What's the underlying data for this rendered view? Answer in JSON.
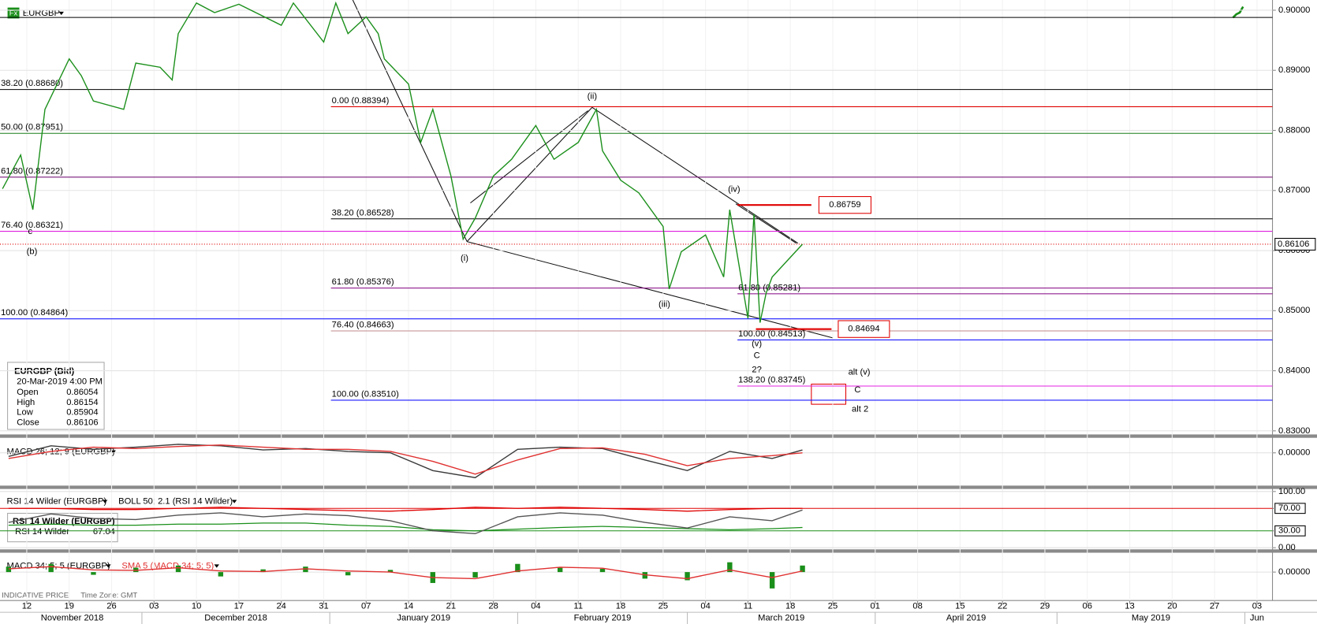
{
  "chart_data": [
    {
      "type": "line",
      "symbol_icon": "Fx",
      "symbol": "EURGBP",
      "series": [
        {
          "color": "#1a8f1a",
          "x": [
            "2018-11-08",
            "2018-11-11",
            "2018-11-13",
            "2018-11-15",
            "2018-11-19",
            "2018-11-21",
            "2018-11-23",
            "2018-11-28",
            "2018-11-30",
            "2018-12-04",
            "2018-12-06",
            "2018-12-07",
            "2018-12-10",
            "2018-12-13",
            "2018-12-17",
            "2018-12-24",
            "2018-12-26",
            "2018-12-31",
            "2019-01-02",
            "2019-01-04",
            "2019-01-07",
            "2019-01-09",
            "2019-01-10",
            "2019-01-14",
            "2019-01-16",
            "2019-01-18",
            "2019-01-21",
            "2019-01-23",
            "2019-01-25",
            "2019-01-28",
            "2019-01-31",
            "2019-02-04",
            "2019-02-07",
            "2019-02-11",
            "2019-02-14",
            "2019-02-15",
            "2019-02-18",
            "2019-02-21",
            "2019-02-25",
            "2019-02-26",
            "2019-02-28",
            "2019-03-04",
            "2019-03-07",
            "2019-03-08",
            "2019-03-11",
            "2019-03-12",
            "2019-03-13",
            "2019-03-14",
            "2019-03-15",
            "2019-03-20"
          ],
          "values": [
            0.8703,
            0.8759,
            0.8668,
            0.8835,
            0.8919,
            0.8891,
            0.8849,
            0.8835,
            0.8912,
            0.8905,
            0.8884,
            0.8961,
            0.9012,
            0.8996,
            0.901,
            0.8975,
            0.9012,
            0.8947,
            0.9012,
            0.8961,
            0.8989,
            0.8961,
            0.8919,
            0.8877,
            0.878,
            0.8835,
            0.8724,
            0.8619,
            0.8654,
            0.8724,
            0.8752,
            0.8808,
            0.8752,
            0.878,
            0.8835,
            0.8766,
            0.8717,
            0.8696,
            0.864,
            0.8536,
            0.8598,
            0.8626,
            0.8556,
            0.8668,
            0.8487,
            0.8661,
            0.848,
            0.8529,
            0.8556,
            0.86106
          ]
        }
      ],
      "xlim": [
        "2018-11-08",
        "2019-06-05"
      ],
      "xticks": [
        {
          "value": "2018-11-12",
          "label": "12"
        },
        {
          "value": "2018-11-19",
          "label": "19"
        },
        {
          "value": "2018-11-26",
          "label": "26"
        },
        {
          "value": "2018-12-03",
          "label": "03"
        },
        {
          "value": "2018-12-10",
          "label": "10"
        },
        {
          "value": "2018-12-17",
          "label": "17"
        },
        {
          "value": "2018-12-24",
          "label": "24"
        },
        {
          "value": "2018-12-31",
          "label": "31"
        },
        {
          "value": "2019-01-07",
          "label": "07"
        },
        {
          "value": "2019-01-14",
          "label": "14"
        },
        {
          "value": "2019-01-21",
          "label": "21"
        },
        {
          "value": "2019-01-28",
          "label": "28"
        },
        {
          "value": "2019-02-04",
          "label": "04"
        },
        {
          "value": "2019-02-11",
          "label": "11"
        },
        {
          "value": "2019-02-18",
          "label": "18"
        },
        {
          "value": "2019-02-25",
          "label": "25"
        },
        {
          "value": "2019-03-04",
          "label": "04"
        },
        {
          "value": "2019-03-11",
          "label": "11"
        },
        {
          "value": "2019-03-18",
          "label": "18"
        },
        {
          "value": "2019-03-25",
          "label": "25"
        },
        {
          "value": "2019-04-01",
          "label": "01"
        },
        {
          "value": "2019-04-08",
          "label": "08"
        },
        {
          "value": "2019-04-15",
          "label": "15"
        },
        {
          "value": "2019-04-22",
          "label": "22"
        },
        {
          "value": "2019-04-29",
          "label": "29"
        },
        {
          "value": "2019-05-06",
          "label": "06"
        },
        {
          "value": "2019-05-13",
          "label": "13"
        },
        {
          "value": "2019-05-20",
          "label": "20"
        },
        {
          "value": "2019-05-27",
          "label": "27"
        },
        {
          "value": "2019-06-03",
          "label": "03"
        }
      ],
      "months": [
        {
          "value": "2018-11-01",
          "label": "November 2018"
        },
        {
          "value": "2018-12-01",
          "label": "December 2018"
        },
        {
          "value": "2019-01-01",
          "label": "January 2019"
        },
        {
          "value": "2019-02-01",
          "label": "February 2019"
        },
        {
          "value": "2019-03-01",
          "label": "March 2019"
        },
        {
          "value": "2019-04-01",
          "label": "April 2019"
        },
        {
          "value": "2019-05-01",
          "label": "May 2019"
        },
        {
          "value": "2019-06-01",
          "label": "Jun"
        }
      ],
      "ylim": [
        0.8294,
        0.9017
      ],
      "yticks": [
        {
          "value": 0.9,
          "label": "0.90000"
        },
        {
          "value": 0.89,
          "label": "0.89000"
        },
        {
          "value": 0.88,
          "label": "0.88000"
        },
        {
          "value": 0.87,
          "label": "0.87000"
        },
        {
          "value": 0.86,
          "label": "0.86000"
        },
        {
          "value": 0.85,
          "label": "0.85000"
        },
        {
          "value": 0.84,
          "label": "0.84000"
        },
        {
          "value": 0.83,
          "label": "0.83000"
        }
      ],
      "grid": true,
      "last_price": {
        "value": 0.86106,
        "label": "0.86106",
        "color": "#e00000"
      },
      "reference_lines": [
        {
          "value": 0.8988,
          "color": "#000000"
        }
      ],
      "fib_sets": [
        {
          "levels": [
            {
              "label": "38.20 (0.88680)",
              "value": 0.8868,
              "color": "#000000"
            },
            {
              "label": "50.00 (0.87951)",
              "value": 0.87951,
              "color": "#1a7f1a"
            },
            {
              "label": "61.80 (0.87222)",
              "value": 0.87222,
              "color": "#7a1a7a"
            },
            {
              "label": "76.40 (0.86321)",
              "value": 0.86321,
              "color": "#e020e0"
            },
            {
              "label": "100.00 (0.84864)",
              "value": 0.84864,
              "color": "#1a1aff"
            }
          ]
        },
        {
          "levels": [
            {
              "label": "0.00 (0.88394)",
              "value": 0.88394,
              "color": "#e00000"
            },
            {
              "label": "38.20 (0.86528)",
              "value": 0.86528,
              "color": "#000000"
            },
            {
              "label": "61.80 (0.85376)",
              "value": 0.85376,
              "color": "#800080"
            },
            {
              "label": "76.40 (0.84663)",
              "value": 0.84663,
              "color": "#c08a8a"
            },
            {
              "label": "100.00 (0.83510)",
              "value": 0.8351,
              "color": "#1a1aff"
            }
          ]
        },
        {
          "levels": [
            {
              "label": "61.80 (0.85281)",
              "value": 0.85281,
              "color": "#800080"
            },
            {
              "label": "100.00 (0.84513)",
              "value": 0.84513,
              "color": "#1a1aff"
            },
            {
              "label": "138.20 (0.83745)",
              "value": 0.83745,
              "color": "#e020e0"
            }
          ]
        }
      ],
      "wave_labels": [
        {
          "text": "c",
          "color": "#1a8f1a"
        },
        {
          "text": "(b)",
          "color": "#1a8f1a"
        },
        {
          "text": "(i)",
          "color": "#1a8f1a"
        },
        {
          "text": "(ii)",
          "color": "#1a8f1a"
        },
        {
          "text": "(iii)",
          "color": "#1a8f1a"
        },
        {
          "text": "(iv)",
          "color": "#1a8f1a"
        },
        {
          "text": "(v)",
          "color": "#1a8f1a"
        },
        {
          "text": "C",
          "color": "#1a8f1a"
        },
        {
          "text": "2?",
          "color": "#1a4fb0"
        },
        {
          "text": "alt (v)",
          "color": "#e00000"
        },
        {
          "text": "C",
          "color": "#e00000"
        },
        {
          "text": "alt 2",
          "color": "#e00000"
        }
      ],
      "price_boxes": [
        {
          "label": "0.86759",
          "value": 0.86759
        },
        {
          "label": "0.84694",
          "value": 0.84694
        }
      ],
      "info_box": {
        "title": "EURGBP (Bid)",
        "date": "20-Mar-2019 4:00 PM",
        "rows": [
          {
            "label": "Open",
            "value": 0.86054
          },
          {
            "label": "High",
            "value": 0.86154
          },
          {
            "label": "Low",
            "value": 0.85904
          },
          {
            "label": "Close",
            "value": 0.86106
          }
        ]
      },
      "footer": "INDICATIVE PRICE",
      "timezone": "Time Zone: GMT"
    },
    {
      "type": "line",
      "title": "MACD 26; 12; 9 (EURGBP)",
      "x": [
        "2018-11-09",
        "2018-11-16",
        "2018-11-23",
        "2018-11-30",
        "2018-12-07",
        "2018-12-14",
        "2018-12-21",
        "2018-12-28",
        "2019-01-04",
        "2019-01-11",
        "2019-01-18",
        "2019-01-25",
        "2019-02-01",
        "2019-02-08",
        "2019-02-15",
        "2019-02-22",
        "2019-03-01",
        "2019-03-08",
        "2019-03-15",
        "2019-03-20"
      ],
      "series": [
        {
          "color": "#3a3a3a",
          "values": [
            -0.0005,
            0.001,
            0.0005,
            0.0008,
            0.0012,
            0.001,
            0.0004,
            0.0006,
            0.0002,
            0.0,
            -0.0025,
            -0.0035,
            0.0005,
            0.0008,
            0.0006,
            -0.001,
            -0.0025,
            0.0002,
            -0.0008,
            0.0004
          ]
        },
        {
          "color": "#e03030",
          "values": [
            -0.0008,
            0.0002,
            0.0008,
            0.0006,
            0.0009,
            0.0011,
            0.0008,
            0.0005,
            0.0005,
            0.0002,
            -0.0012,
            -0.003,
            -0.001,
            0.0006,
            0.0007,
            -0.0002,
            -0.0018,
            -0.0008,
            -0.0004,
            0.0
          ]
        }
      ],
      "ylim": [
        -0.0045,
        0.002
      ],
      "yticks": [
        {
          "value": 0,
          "label": "0.00000"
        }
      ]
    },
    {
      "type": "line",
      "title": "RSI 14 Wilder (EURGBP)",
      "x": [
        "2018-11-09",
        "2018-11-16",
        "2018-11-23",
        "2018-11-30",
        "2018-12-07",
        "2018-12-14",
        "2018-12-21",
        "2018-12-28",
        "2019-01-04",
        "2019-01-11",
        "2019-01-18",
        "2019-01-25",
        "2019-02-01",
        "2019-02-08",
        "2019-02-15",
        "2019-02-22",
        "2019-03-01",
        "2019-03-08",
        "2019-03-15",
        "2019-03-20"
      ],
      "series": [
        {
          "color": "#555555",
          "values": [
            45,
            60,
            52,
            50,
            58,
            62,
            55,
            60,
            57,
            48,
            30,
            25,
            55,
            62,
            58,
            45,
            35,
            55,
            48,
            67.04
          ]
        }
      ],
      "bands": {
        "name": "BOLL 50; 2.1 (RSI 14 Wilder)",
        "upper_color": "#e00000",
        "lower_color": "#1a8f1a",
        "upper": [
          70,
          70,
          68,
          68,
          70,
          72,
          70,
          68,
          66,
          65,
          68,
          72,
          70,
          72,
          70,
          68,
          65,
          68,
          70,
          70
        ],
        "lower": [
          40,
          42,
          40,
          40,
          42,
          42,
          44,
          44,
          40,
          38,
          32,
          30,
          33,
          36,
          38,
          36,
          34,
          32,
          34,
          36
        ]
      },
      "info_box": {
        "title": "RSI 14 Wilder (EURGBP)",
        "label": "RSI 14 Wilder",
        "value": 67.04
      },
      "ylim": [
        -2.9,
        103
      ],
      "yticks": [
        {
          "value": 100,
          "label": "100.00"
        },
        {
          "value": 70,
          "label": "70.00",
          "color": "#e00000"
        },
        {
          "value": 30,
          "label": "30.00",
          "color": "#1a8f1a"
        },
        {
          "value": 0,
          "label": "0.00"
        }
      ]
    },
    {
      "type": "bar",
      "title": "MACD 34; 5; 5 (EURGBP)",
      "subtitle": "SMA 5 (MACD 34; 5; 5)",
      "x": [
        "2018-11-09",
        "2018-11-16",
        "2018-11-23",
        "2018-11-30",
        "2018-12-07",
        "2018-12-14",
        "2018-12-21",
        "2018-12-28",
        "2019-01-04",
        "2019-01-11",
        "2019-01-18",
        "2019-01-25",
        "2019-02-01",
        "2019-02-08",
        "2019-02-15",
        "2019-02-22",
        "2019-03-01",
        "2019-03-08",
        "2019-03-15",
        "2019-03-20"
      ],
      "series": [
        {
          "color": "#1a8f1a",
          "values": [
            0.001,
            0.0015,
            -0.0005,
            0.0008,
            0.0012,
            -0.0008,
            0.0005,
            0.001,
            -0.0006,
            0.0004,
            -0.002,
            -0.001,
            0.0015,
            0.0008,
            0.0006,
            -0.0012,
            -0.0015,
            0.0018,
            -0.003,
            0.0012
          ]
        },
        {
          "color": "#e03030",
          "values": [
            0.0006,
            0.001,
            0.0004,
            0.0003,
            0.0008,
            0.0002,
            0.0001,
            0.0006,
            0.0002,
            0.0,
            -0.001,
            -0.0012,
            0.0002,
            0.0009,
            0.0007,
            -0.0005,
            -0.0012,
            0.0004,
            -0.001,
            0.0002
          ]
        }
      ],
      "ylim": [
        -0.0046,
        0.0034
      ],
      "yticks": [
        {
          "value": 0,
          "label": "0.00000"
        }
      ]
    }
  ]
}
